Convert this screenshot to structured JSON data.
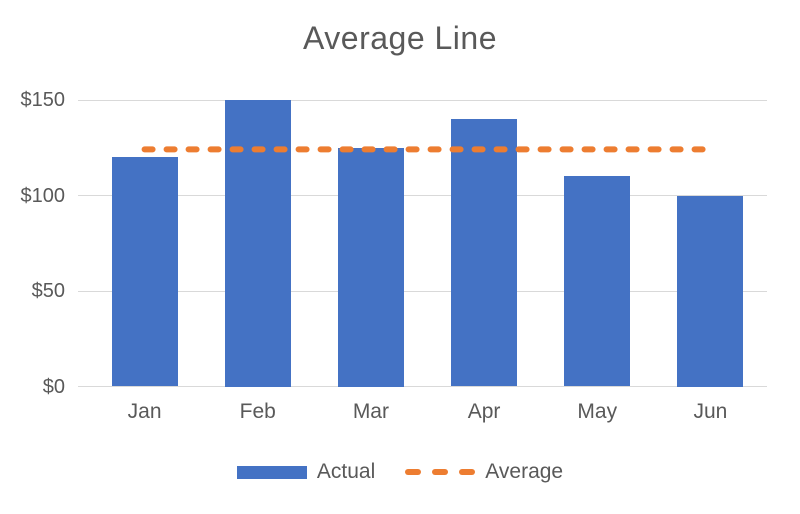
{
  "chart_data": {
    "type": "bar",
    "title": "Average Line",
    "categories": [
      "Jan",
      "Feb",
      "Mar",
      "Apr",
      "May",
      "Jun"
    ],
    "series": [
      {
        "name": "Actual",
        "type": "bar",
        "color": "#4472C4",
        "values": [
          120,
          150,
          125,
          140,
          110,
          100
        ]
      },
      {
        "name": "Average",
        "type": "line",
        "line_style": "dashed",
        "color": "#ED7D31",
        "value": 124.17
      }
    ],
    "xlabel": "",
    "ylabel": "",
    "ylim": [
      0,
      150
    ],
    "y_ticks": [
      {
        "value": 0,
        "label": "$0"
      },
      {
        "value": 50,
        "label": "$50"
      },
      {
        "value": 100,
        "label": "$100"
      },
      {
        "value": 150,
        "label": "$150"
      }
    ],
    "grid": true,
    "legend_position": "bottom",
    "legend": [
      "Actual",
      "Average"
    ],
    "colors": {
      "text": "#595959",
      "gridline": "#D9D9D9",
      "background": "#FFFFFF"
    }
  }
}
